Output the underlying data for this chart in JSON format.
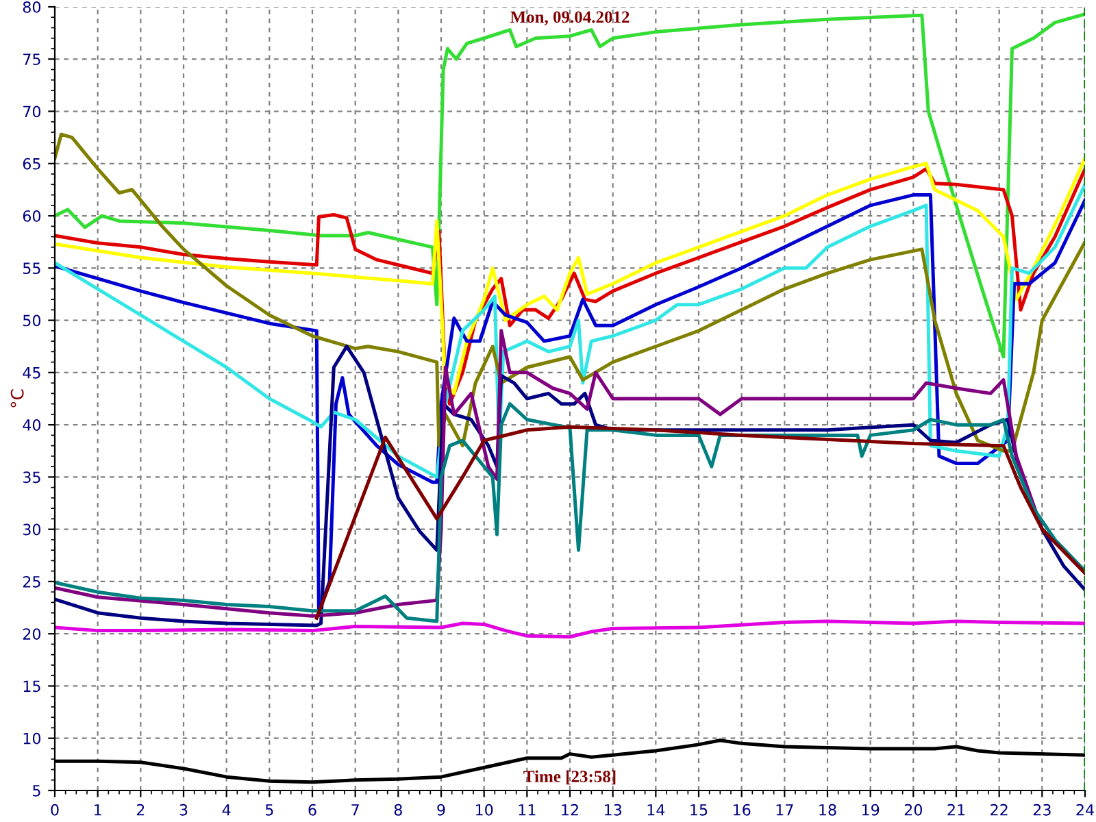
{
  "chart_data": {
    "type": "line",
    "title": "Mon, 09.04.2012",
    "xlabel": "Time [23:58]",
    "ylabel": "°C",
    "xlim": [
      0,
      24
    ],
    "xticks": [
      0,
      1,
      2,
      3,
      4,
      5,
      6,
      7,
      8,
      9,
      10,
      11,
      12,
      13,
      14,
      15,
      16,
      17,
      18,
      19,
      20,
      21,
      22,
      23,
      24
    ],
    "ylim": [
      5,
      80
    ],
    "yticks": [
      5,
      10,
      15,
      20,
      25,
      30,
      35,
      40,
      45,
      50,
      55,
      60,
      65,
      70,
      75,
      80
    ],
    "grid": true,
    "legend": false,
    "marker": "none",
    "line_style": "solid",
    "ref_lines": [
      {
        "axis": "x",
        "value": 24,
        "color": "#008000",
        "line_style": "dashed"
      }
    ],
    "series": [
      {
        "color": "#33dd33",
        "x": [
          0,
          0.3,
          0.7,
          1.1,
          1.5,
          3,
          5,
          6.2,
          7,
          7.3,
          8.8,
          8.9,
          9.05,
          9.15,
          9.35,
          9.6,
          10,
          10.6,
          10.75,
          11.2,
          12,
          12.5,
          12.7,
          13,
          14,
          16,
          18,
          20.2,
          20.35,
          21,
          21.6,
          22.1,
          22.3,
          22.8,
          23.3,
          24
        ],
        "values": [
          60,
          60.6,
          58.9,
          60,
          59.5,
          59.3,
          58.6,
          58.1,
          58.1,
          58.4,
          57,
          51.5,
          74,
          76,
          75,
          76.5,
          77,
          77.8,
          76.2,
          77,
          77.2,
          77.8,
          76.2,
          77,
          77.6,
          78.3,
          78.8,
          79.2,
          70,
          61,
          53,
          46.5,
          76,
          77,
          78.5,
          79.3
        ]
      },
      {
        "color": "#e00000",
        "x": [
          0,
          1,
          2,
          3,
          4,
          5,
          6.1,
          6.15,
          6.5,
          6.8,
          7,
          7.5,
          8,
          8.8,
          8.95,
          9.1,
          9.2,
          9.5,
          9.8,
          10.2,
          10.4,
          10.6,
          10.9,
          11.2,
          11.5,
          11.8,
          12.1,
          12.35,
          12.6,
          13,
          14,
          15,
          16,
          17,
          18,
          19,
          20,
          20.3,
          20.5,
          21,
          22.1,
          22.3,
          22.5,
          22.8,
          23.3,
          24
        ],
        "values": [
          58.1,
          57.4,
          57,
          56.3,
          55.9,
          55.6,
          55.3,
          59.9,
          60.1,
          59.8,
          56.8,
          55.8,
          55.3,
          54.5,
          58.5,
          44,
          42,
          45,
          50,
          53,
          54,
          49.5,
          51,
          51,
          50.2,
          52,
          54.5,
          52,
          51.8,
          52.8,
          54.5,
          56,
          57.5,
          59,
          60.8,
          62.5,
          63.7,
          64.5,
          63.1,
          63,
          62.5,
          60,
          51,
          54.5,
          58,
          64.5
        ]
      },
      {
        "color": "#ffff00",
        "x": [
          0,
          2,
          4,
          6,
          8,
          8.8,
          8.9,
          9.1,
          9.3,
          9.6,
          10,
          10.2,
          10.5,
          11,
          11.4,
          11.7,
          12,
          12.2,
          12.4,
          13,
          14,
          15,
          16,
          17,
          18,
          19,
          20,
          20.3,
          20.5,
          21.5,
          22.1,
          22.4,
          22.8,
          23.4,
          24
        ],
        "values": [
          57.3,
          56,
          55.1,
          54.5,
          53.8,
          53.5,
          59.5,
          44,
          43,
          48,
          52,
          55,
          50,
          51.5,
          52.3,
          51,
          54.5,
          56,
          52.5,
          53.5,
          55.5,
          57,
          58.5,
          60,
          62,
          63.5,
          64.7,
          65,
          62.5,
          60.5,
          58,
          52,
          55,
          60,
          65.5
        ]
      },
      {
        "color": "#0000d0",
        "x": [
          0,
          1,
          2,
          3,
          4,
          5,
          6.1,
          6.15,
          6.4,
          6.55,
          6.7,
          6.85,
          7.5,
          8,
          8.8,
          8.9,
          9,
          9.3,
          9.6,
          9.9,
          10.2,
          10.5,
          11,
          11.4,
          12,
          12.3,
          12.6,
          13,
          14,
          15,
          16,
          17,
          18,
          19,
          20,
          20.4,
          20.6,
          21,
          21.5,
          22.2,
          22.35,
          22.7,
          23.3,
          24
        ],
        "values": [
          55.2,
          54,
          52.8,
          51.7,
          50.7,
          49.7,
          49,
          22,
          25,
          42,
          44.5,
          41,
          38,
          36.2,
          34.5,
          34.5,
          42,
          50.2,
          48,
          48,
          51.8,
          50.5,
          49.8,
          48,
          48.5,
          52,
          49.5,
          49.5,
          51.5,
          53.2,
          55,
          57,
          59,
          61,
          62,
          62,
          37,
          36.3,
          36.3,
          38.5,
          53.5,
          53.5,
          55.5,
          61.5
        ]
      },
      {
        "color": "#33e6e6",
        "x": [
          0,
          1,
          2,
          3,
          4,
          5,
          6,
          6.2,
          6.5,
          7,
          8,
          8.9,
          9.1,
          9.5,
          10,
          10.25,
          10.35,
          10.45,
          11,
          11.5,
          12,
          12.2,
          12.3,
          12.5,
          13,
          14,
          14.5,
          15,
          16,
          17,
          17.5,
          18,
          19,
          20,
          20.3,
          20.4,
          21,
          22,
          22.2,
          22.3,
          22.7,
          23.3,
          24
        ],
        "values": [
          55.5,
          53,
          50.5,
          48,
          45.5,
          42.5,
          40.3,
          39.8,
          41.2,
          40.5,
          37,
          35,
          42,
          49,
          51,
          52.3,
          38,
          47,
          48,
          47,
          47.5,
          50,
          44,
          48,
          48.5,
          50,
          51.5,
          51.5,
          53,
          55,
          55,
          57,
          59,
          60.5,
          61,
          38,
          37.5,
          37,
          40,
          55,
          54.5,
          57,
          63
        ]
      },
      {
        "color": "#808000",
        "x": [
          0,
          0.15,
          0.4,
          1,
          1.5,
          1.8,
          2.5,
          3,
          4,
          5,
          6,
          7,
          7.3,
          8,
          8.9,
          8.95,
          9.1,
          9.5,
          9.8,
          10.2,
          10.4,
          11,
          12,
          12.3,
          13,
          14,
          15,
          16,
          17,
          18,
          19,
          20.2,
          20.5,
          21,
          21.5,
          22.1,
          22.3,
          22.8,
          23,
          24
        ],
        "values": [
          65.5,
          67.8,
          67.5,
          64.5,
          62.2,
          62.5,
          59,
          56.8,
          53.3,
          50.5,
          48.5,
          47.3,
          47.5,
          47,
          46,
          38,
          41,
          38,
          44,
          47.5,
          44,
          45.5,
          46.5,
          44.3,
          46,
          47.5,
          49,
          51,
          53,
          54.5,
          55.8,
          56.8,
          50,
          43,
          38.5,
          37.5,
          37.5,
          45,
          50,
          57.5
        ]
      },
      {
        "color": "#000080",
        "x": [
          0,
          1,
          2,
          3,
          4,
          6.1,
          6.2,
          6.5,
          6.8,
          7.2,
          7.6,
          8,
          8.5,
          8.9,
          9.05,
          9.3,
          9.7,
          10.1,
          10.3,
          10.4,
          10.7,
          11,
          11.5,
          11.8,
          12.1,
          12.35,
          12.6,
          13,
          14,
          16,
          18,
          20,
          20.4,
          21,
          21.8,
          22.2,
          22.5,
          23,
          23.5,
          24
        ],
        "values": [
          23.3,
          22,
          21.5,
          21.2,
          21,
          20.8,
          21,
          45.5,
          47.5,
          45,
          39,
          33,
          29.8,
          28,
          42,
          41,
          40.5,
          38,
          36,
          44.7,
          44,
          42.5,
          43,
          42,
          42,
          43,
          40,
          39.5,
          39.5,
          39.5,
          39.5,
          40,
          38.5,
          38.3,
          40,
          40.5,
          35,
          30,
          26.5,
          24.2
        ]
      },
      {
        "color": "#800080",
        "x": [
          0,
          1,
          3,
          5,
          6,
          7,
          8,
          8.9,
          9,
          9.1,
          9.3,
          9.7,
          10.1,
          10.3,
          10.4,
          10.6,
          11,
          11.6,
          12,
          12.4,
          12.6,
          13,
          14,
          15,
          15.5,
          16,
          17,
          18,
          19,
          20,
          20.3,
          21,
          21.8,
          22.1,
          22.4,
          23,
          24
        ],
        "values": [
          24.4,
          23.5,
          22.8,
          22,
          21.7,
          22,
          22.8,
          23.2,
          30,
          45.5,
          41,
          43,
          36,
          34.8,
          49,
          45,
          45,
          43.5,
          43,
          41.5,
          45,
          42.5,
          42.5,
          42.5,
          41,
          42.5,
          42.5,
          42.5,
          42.5,
          42.5,
          44,
          43.5,
          43,
          44.3,
          37,
          30,
          25.8
        ]
      },
      {
        "color": "#008080",
        "x": [
          0,
          1,
          2,
          3,
          4,
          5,
          6,
          7,
          7.5,
          7.7,
          8.2,
          8.9,
          9,
          9.2,
          9.5,
          10,
          10.2,
          10.3,
          10.4,
          10.6,
          11,
          12,
          12.2,
          12.4,
          13,
          14,
          15,
          15.3,
          15.5,
          17,
          18,
          18.7,
          18.8,
          19,
          20,
          20.4,
          21,
          21.8,
          22.1,
          22.3,
          22.8,
          23.3,
          24
        ],
        "values": [
          24.9,
          24,
          23.4,
          23.2,
          22.8,
          22.6,
          22.2,
          22.2,
          23.2,
          23.6,
          21.5,
          21.2,
          35,
          38,
          38.5,
          36,
          35,
          29.5,
          40,
          42,
          40.5,
          39.7,
          28,
          39.5,
          39.5,
          39,
          39,
          36,
          39,
          39,
          39,
          39,
          37,
          39,
          39.5,
          40.5,
          40,
          40,
          40.5,
          37,
          32,
          29,
          26
        ]
      },
      {
        "color": "#800000",
        "x": [
          6.1,
          7.7,
          8.9,
          9.5,
          10,
          11,
          12,
          14,
          16,
          18,
          20,
          22.1,
          22.5,
          23,
          24
        ],
        "values": [
          21.5,
          38.8,
          31,
          35,
          38.5,
          39.5,
          39.8,
          39.5,
          39,
          38.6,
          38.2,
          38,
          34,
          30,
          25.8
        ]
      },
      {
        "color": "#e000e0",
        "x": [
          0,
          1,
          2,
          4,
          6,
          7,
          9,
          9.5,
          10,
          10.5,
          11,
          12,
          12.5,
          13,
          15,
          17,
          18,
          20,
          21,
          22,
          24
        ],
        "values": [
          20.6,
          20.3,
          20.3,
          20.4,
          20.3,
          20.7,
          20.6,
          21,
          20.9,
          20.3,
          19.8,
          19.7,
          20.2,
          20.5,
          20.6,
          21.1,
          21.2,
          21,
          21.2,
          21.1,
          21
        ]
      },
      {
        "color": "#000000",
        "x": [
          0,
          1,
          2,
          3,
          4,
          5,
          6,
          7,
          8,
          9,
          10,
          11,
          11.8,
          12,
          12.5,
          13,
          14,
          15,
          15.5,
          16,
          17,
          19,
          20.5,
          21,
          21.5,
          22,
          24
        ],
        "values": [
          7.8,
          7.8,
          7.7,
          7.1,
          6.3,
          5.9,
          5.8,
          6,
          6.1,
          6.3,
          7.2,
          8.1,
          8.1,
          8.5,
          8.2,
          8.4,
          8.8,
          9.4,
          9.8,
          9.5,
          9.2,
          9,
          9,
          9.2,
          8.8,
          8.6,
          8.4
        ]
      }
    ]
  }
}
